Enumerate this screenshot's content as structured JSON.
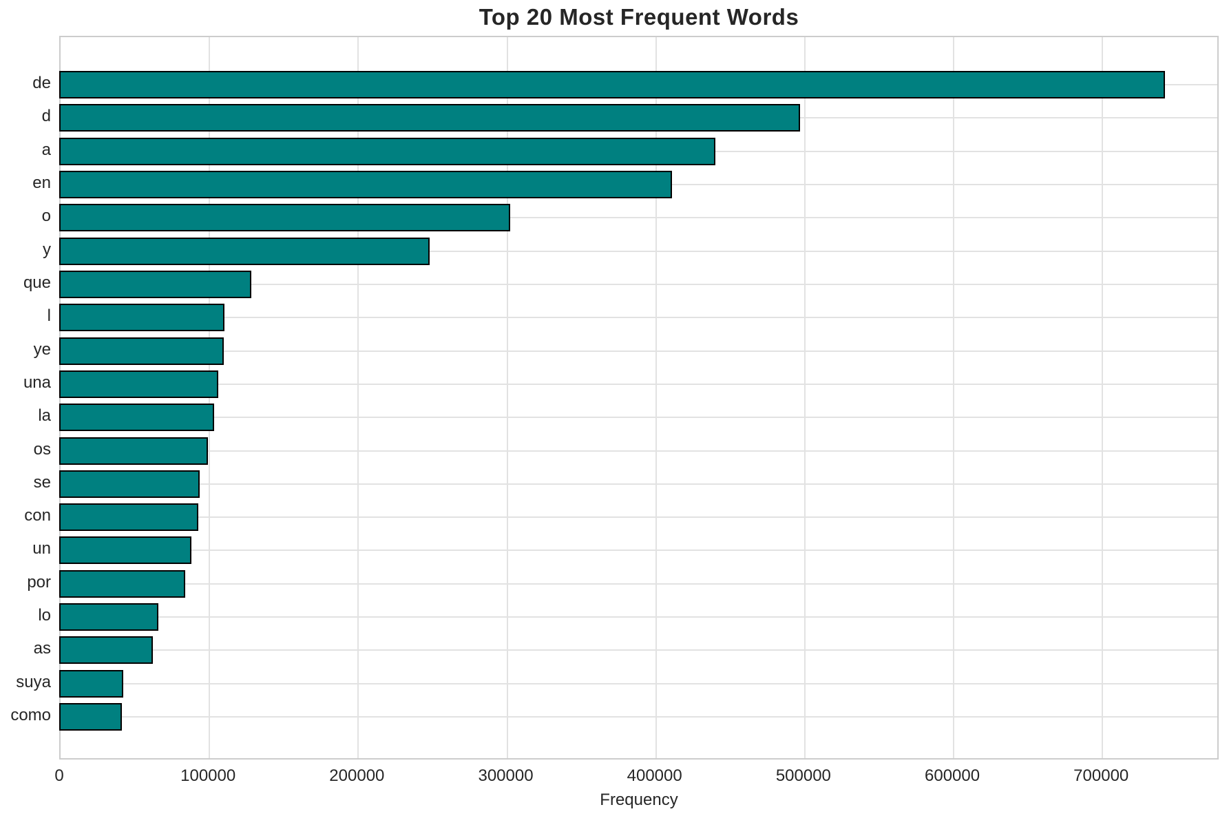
{
  "title": "Top 20 Most Frequent Words",
  "x_axis_label": "Frequency",
  "chart_data": {
    "type": "bar",
    "orientation": "horizontal",
    "title": "Top 20 Most Frequent Words",
    "xlabel": "Frequency",
    "ylabel": "",
    "categories": [
      "de",
      "d",
      "a",
      "en",
      "o",
      "y",
      "que",
      "l",
      "ye",
      "una",
      "la",
      "os",
      "se",
      "con",
      "un",
      "por",
      "lo",
      "as",
      "suya",
      "como"
    ],
    "values": [
      742000,
      497000,
      440000,
      411000,
      302000,
      248000,
      128000,
      110000,
      109500,
      106000,
      103000,
      99000,
      93500,
      92500,
      88000,
      83500,
      65500,
      62000,
      42000,
      41000
    ],
    "xlim": [
      0,
      779000
    ],
    "xticks": [
      0,
      100000,
      200000,
      300000,
      400000,
      500000,
      600000,
      700000
    ],
    "grid": true,
    "legend": "none",
    "bar_color": "#008080",
    "bar_edge_color": "#000000",
    "grid_color": "#e2e2e2",
    "background_color": "#ffffff",
    "text_color": "#262626"
  }
}
